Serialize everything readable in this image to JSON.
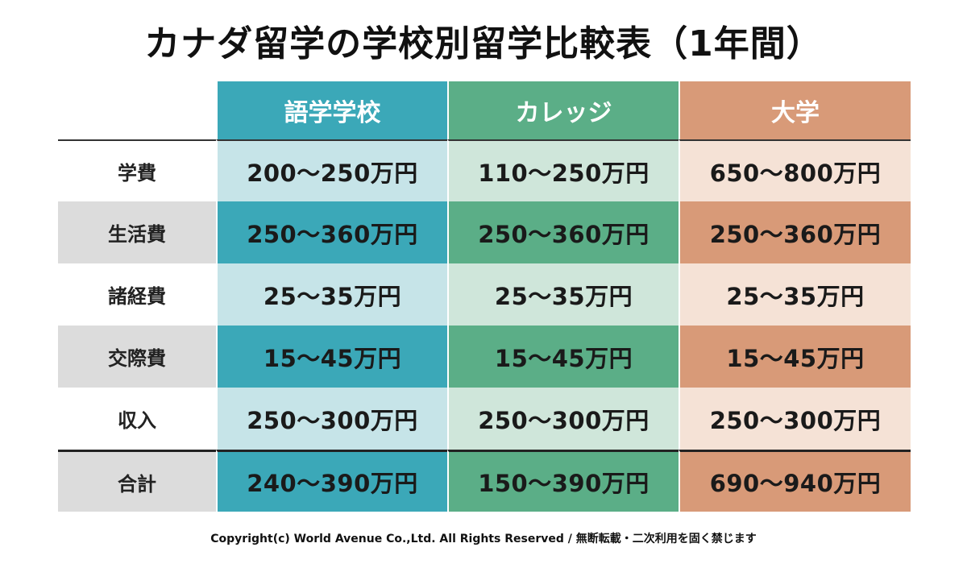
{
  "title": "カナダ留学の学校別留学比較表（1年間）",
  "columns": [
    "語学学校",
    "カレッジ",
    "大学"
  ],
  "rows": [
    {
      "label": "学費",
      "values": [
        "200〜250万円",
        "110〜250万円",
        "650〜800万円"
      ]
    },
    {
      "label": "生活費",
      "values": [
        "250〜360万円",
        "250〜360万円",
        "250〜360万円"
      ]
    },
    {
      "label": "諸経費",
      "values": [
        "25〜35万円",
        "25〜35万円",
        "25〜35万円"
      ]
    },
    {
      "label": "交際費",
      "values": [
        "15〜45万円",
        "15〜45万円",
        "15〜45万円"
      ]
    },
    {
      "label": "収入",
      "values": [
        "250〜300万円",
        "250〜300万円",
        "250〜300万円"
      ]
    },
    {
      "label": "合計",
      "values": [
        "240〜390万円",
        "150〜390万円",
        "690〜940万円"
      ]
    }
  ],
  "colors": {
    "language_school": "#3ba8b8",
    "college": "#5bae87",
    "university": "#d89a78"
  },
  "footer": "Copyright(c) World Avenue Co.,Ltd. All Rights Reserved / 無断転載・二次利用を固く禁じます"
}
